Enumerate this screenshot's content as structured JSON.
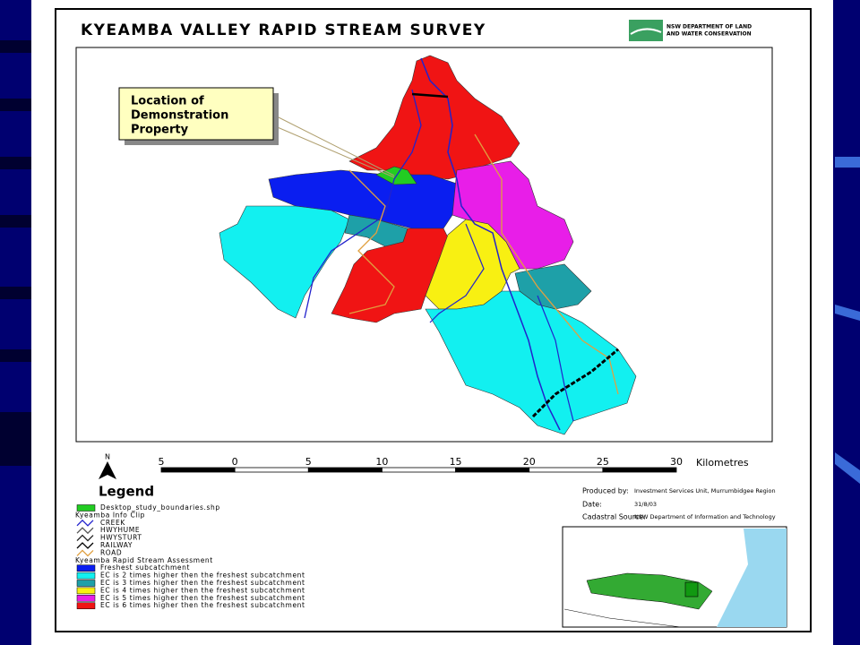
{
  "title": "KYEAMBA VALLEY RAPID STREAM SURVEY",
  "logo_text": [
    "NSW DEPARTMENT OF LAND",
    "AND WATER CONSERVATION"
  ],
  "callout": [
    "Location of",
    "Demonstration",
    "Property"
  ],
  "north": "N",
  "scale": {
    "ticks": [
      "5",
      "0",
      "5",
      "10",
      "15",
      "20",
      "25",
      "30"
    ],
    "unit": "Kilometres"
  },
  "legend": {
    "title": "Legend",
    "items": [
      {
        "label": "Desktop_study_boundaries.shp",
        "kind": "fill",
        "color": "#22cc22"
      },
      {
        "label": "Kyeamba Info Clip",
        "kind": "header"
      },
      {
        "label": "CREEK",
        "kind": "line",
        "color": "#2222cc"
      },
      {
        "label": "HWYHUME",
        "kind": "line",
        "color": "#555555"
      },
      {
        "label": "HWYSTURT",
        "kind": "line",
        "color": "#222222"
      },
      {
        "label": "RAILWAY",
        "kind": "line",
        "color": "#000000"
      },
      {
        "label": "ROAD",
        "kind": "line",
        "color": "#e0a040"
      },
      {
        "label": "Kyeamba Rapid Stream Assessment",
        "kind": "header"
      },
      {
        "label": "Freshest subcatchment",
        "kind": "fill",
        "color": "#0a1ef0"
      },
      {
        "label": "EC is 2 times higher then the freshest subcatchment",
        "kind": "fill",
        "color": "#12f0f0"
      },
      {
        "label": "EC is 3 times higher then the freshest subcatchment",
        "kind": "fill",
        "color": "#1ea0a8"
      },
      {
        "label": "EC is 4 times higher then the freshest subcatchment",
        "kind": "fill",
        "color": "#f8f012"
      },
      {
        "label": "EC is 5 times higher then the freshest subcatchment",
        "kind": "fill",
        "color": "#e81ee8"
      },
      {
        "label": "EC is 6 times higher then the freshest subcatchment",
        "kind": "fill",
        "color": "#f01414"
      }
    ]
  },
  "credits": [
    {
      "label": "Produced by:",
      "text": "Investment Services Unit, Murrumbidgee Region"
    },
    {
      "label": "Date:",
      "text": "31/8/03"
    },
    {
      "label": "Cadastral Source:",
      "text": "NSW Department of Information and Technology"
    }
  ]
}
